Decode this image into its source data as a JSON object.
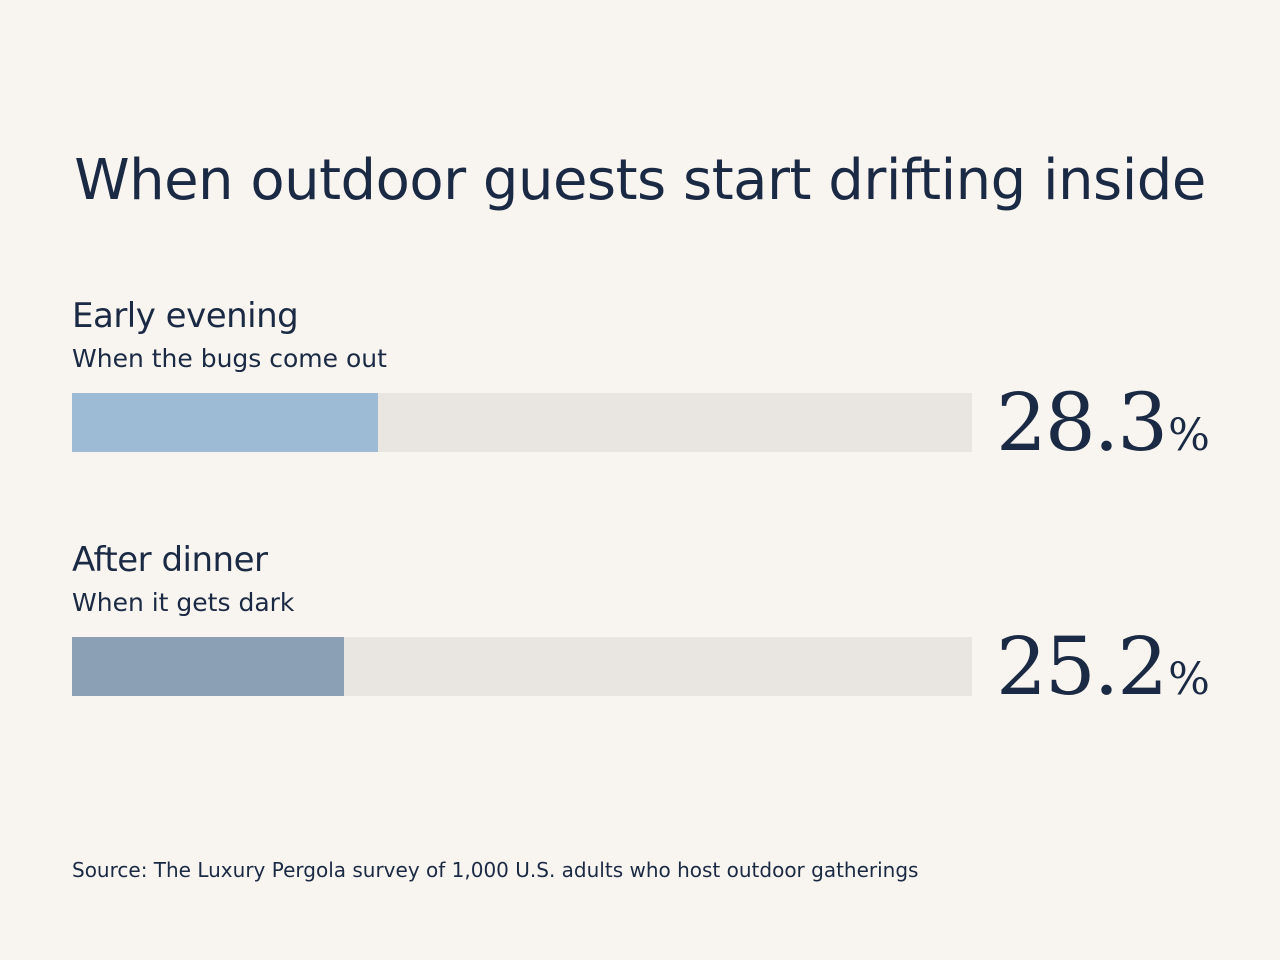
{
  "title": "When outdoor guests start drifting inside",
  "source": "Source: The Luxury Pergola survey of 1,000 U.S. adults who host outdoor gatherings",
  "chart_data": {
    "type": "bar",
    "orientation": "horizontal",
    "title": "When outdoor guests start drifting inside",
    "xlim": [
      0,
      100
    ],
    "unit": "%",
    "grid": false,
    "categories": [
      "Early evening",
      "After dinner"
    ],
    "subtitles": [
      "When the bugs come out",
      "When it gets dark"
    ],
    "values": [
      28.3,
      25.2
    ],
    "value_labels": [
      "28.3",
      "25.2"
    ],
    "bar_colors": [
      "#9dbbd4",
      "#8ba0b5"
    ],
    "track_color": "#e9e5e0"
  }
}
